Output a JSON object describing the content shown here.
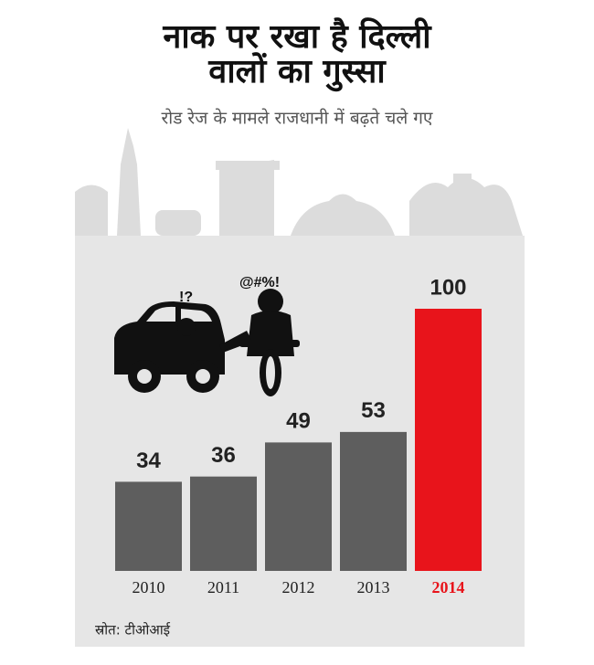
{
  "chart_data": {
    "type": "bar",
    "title": [
      "नाक पर रखा है दिल्ली",
      "वालों का गुस्सा"
    ],
    "subtitle": "रोड रेज के मामले राजधानी में बढ़ते चले गए",
    "categories": [
      "2010",
      "2011",
      "2012",
      "2013",
      "2014"
    ],
    "values": [
      34,
      36,
      49,
      53,
      100
    ],
    "colors": [
      "#5e5e5e",
      "#5e5e5e",
      "#5e5e5e",
      "#5e5e5e",
      "#e8141b"
    ],
    "annotations": [
      "!?",
      "@#%!"
    ],
    "source": "स्रोत: टीओआई"
  }
}
